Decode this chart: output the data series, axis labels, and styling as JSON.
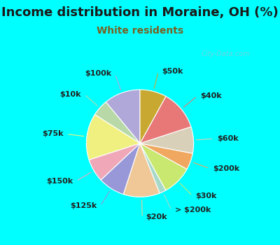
{
  "title": "Income distribution in Moraine, OH (%)",
  "subtitle": "White residents",
  "title_color": "#1a1a1a",
  "subtitle_color": "#7a6020",
  "bg_cyan": "#00ffff",
  "chart_bg_color": "#e8f5ee",
  "watermark": "© City-Data.com",
  "labels": [
    "$100k",
    "$10k",
    "$75k",
    "$150k",
    "$125k",
    "$20k",
    "> $200k",
    "$30k",
    "$200k",
    "$60k",
    "$40k",
    "$50k"
  ],
  "values": [
    11,
    5,
    14,
    7,
    8,
    11,
    2,
    9,
    5,
    8,
    12,
    8
  ],
  "colors": [
    "#b0a8d8",
    "#b8d8a8",
    "#f0f080",
    "#f0a8b8",
    "#9898d8",
    "#f0c898",
    "#a8d8c8",
    "#c8e870",
    "#f0a860",
    "#d8d0b8",
    "#e87878",
    "#c8a830"
  ],
  "label_fontsize": 8,
  "title_fontsize": 13,
  "subtitle_fontsize": 10,
  "startangle": 90
}
